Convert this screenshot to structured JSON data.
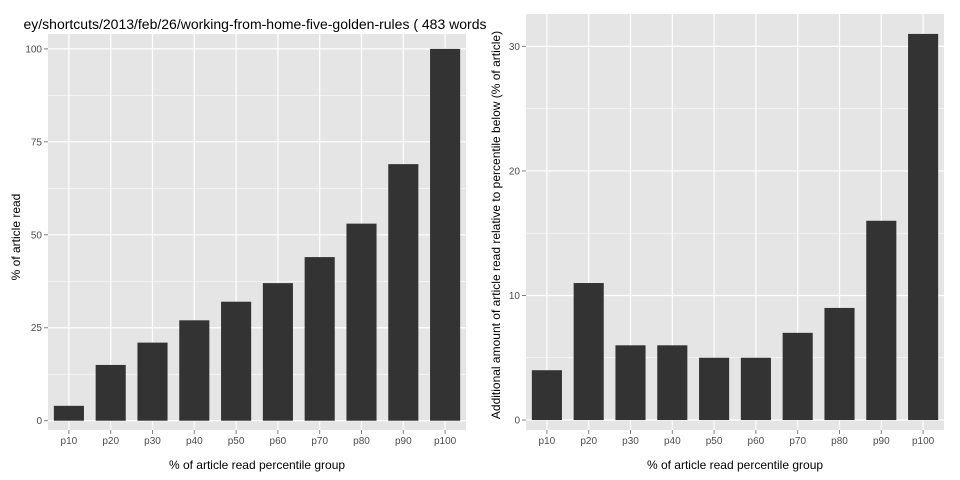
{
  "chart_data": [
    {
      "type": "bar",
      "title": "ey/shortcuts/2013/feb/26/working-from-home-five-golden-rules ( 483 words",
      "xlabel": "% of article read percentile group",
      "ylabel": "% of article read",
      "categories": [
        "p10",
        "p20",
        "p30",
        "p40",
        "p50",
        "p60",
        "p70",
        "p80",
        "p90",
        "p100"
      ],
      "values": [
        4,
        15,
        21,
        27,
        32,
        37,
        44,
        53,
        69,
        100
      ],
      "ylim": [
        -2.5,
        104
      ],
      "yticks": [
        "0",
        "25",
        "50",
        "75",
        "100"
      ],
      "grid": true,
      "bar_color": "#333333",
      "panel_color": "#e5e5e5",
      "grid_color": "#ffffff"
    },
    {
      "type": "bar",
      "title": "",
      "xlabel": "% of article read percentile group",
      "ylabel": "Additional amount of article read relative to percentile below (% of article)",
      "categories": [
        "p10",
        "p20",
        "p30",
        "p40",
        "p50",
        "p60",
        "p70",
        "p80",
        "p90",
        "p100"
      ],
      "values": [
        4,
        11,
        6,
        6,
        5,
        5,
        7,
        9,
        16,
        31
      ],
      "ylim": [
        -0.8,
        32.6
      ],
      "yticks": [
        "0",
        "10",
        "20",
        "30"
      ],
      "grid": true,
      "bar_color": "#333333",
      "panel_color": "#e5e5e5",
      "grid_color": "#ffffff"
    }
  ]
}
